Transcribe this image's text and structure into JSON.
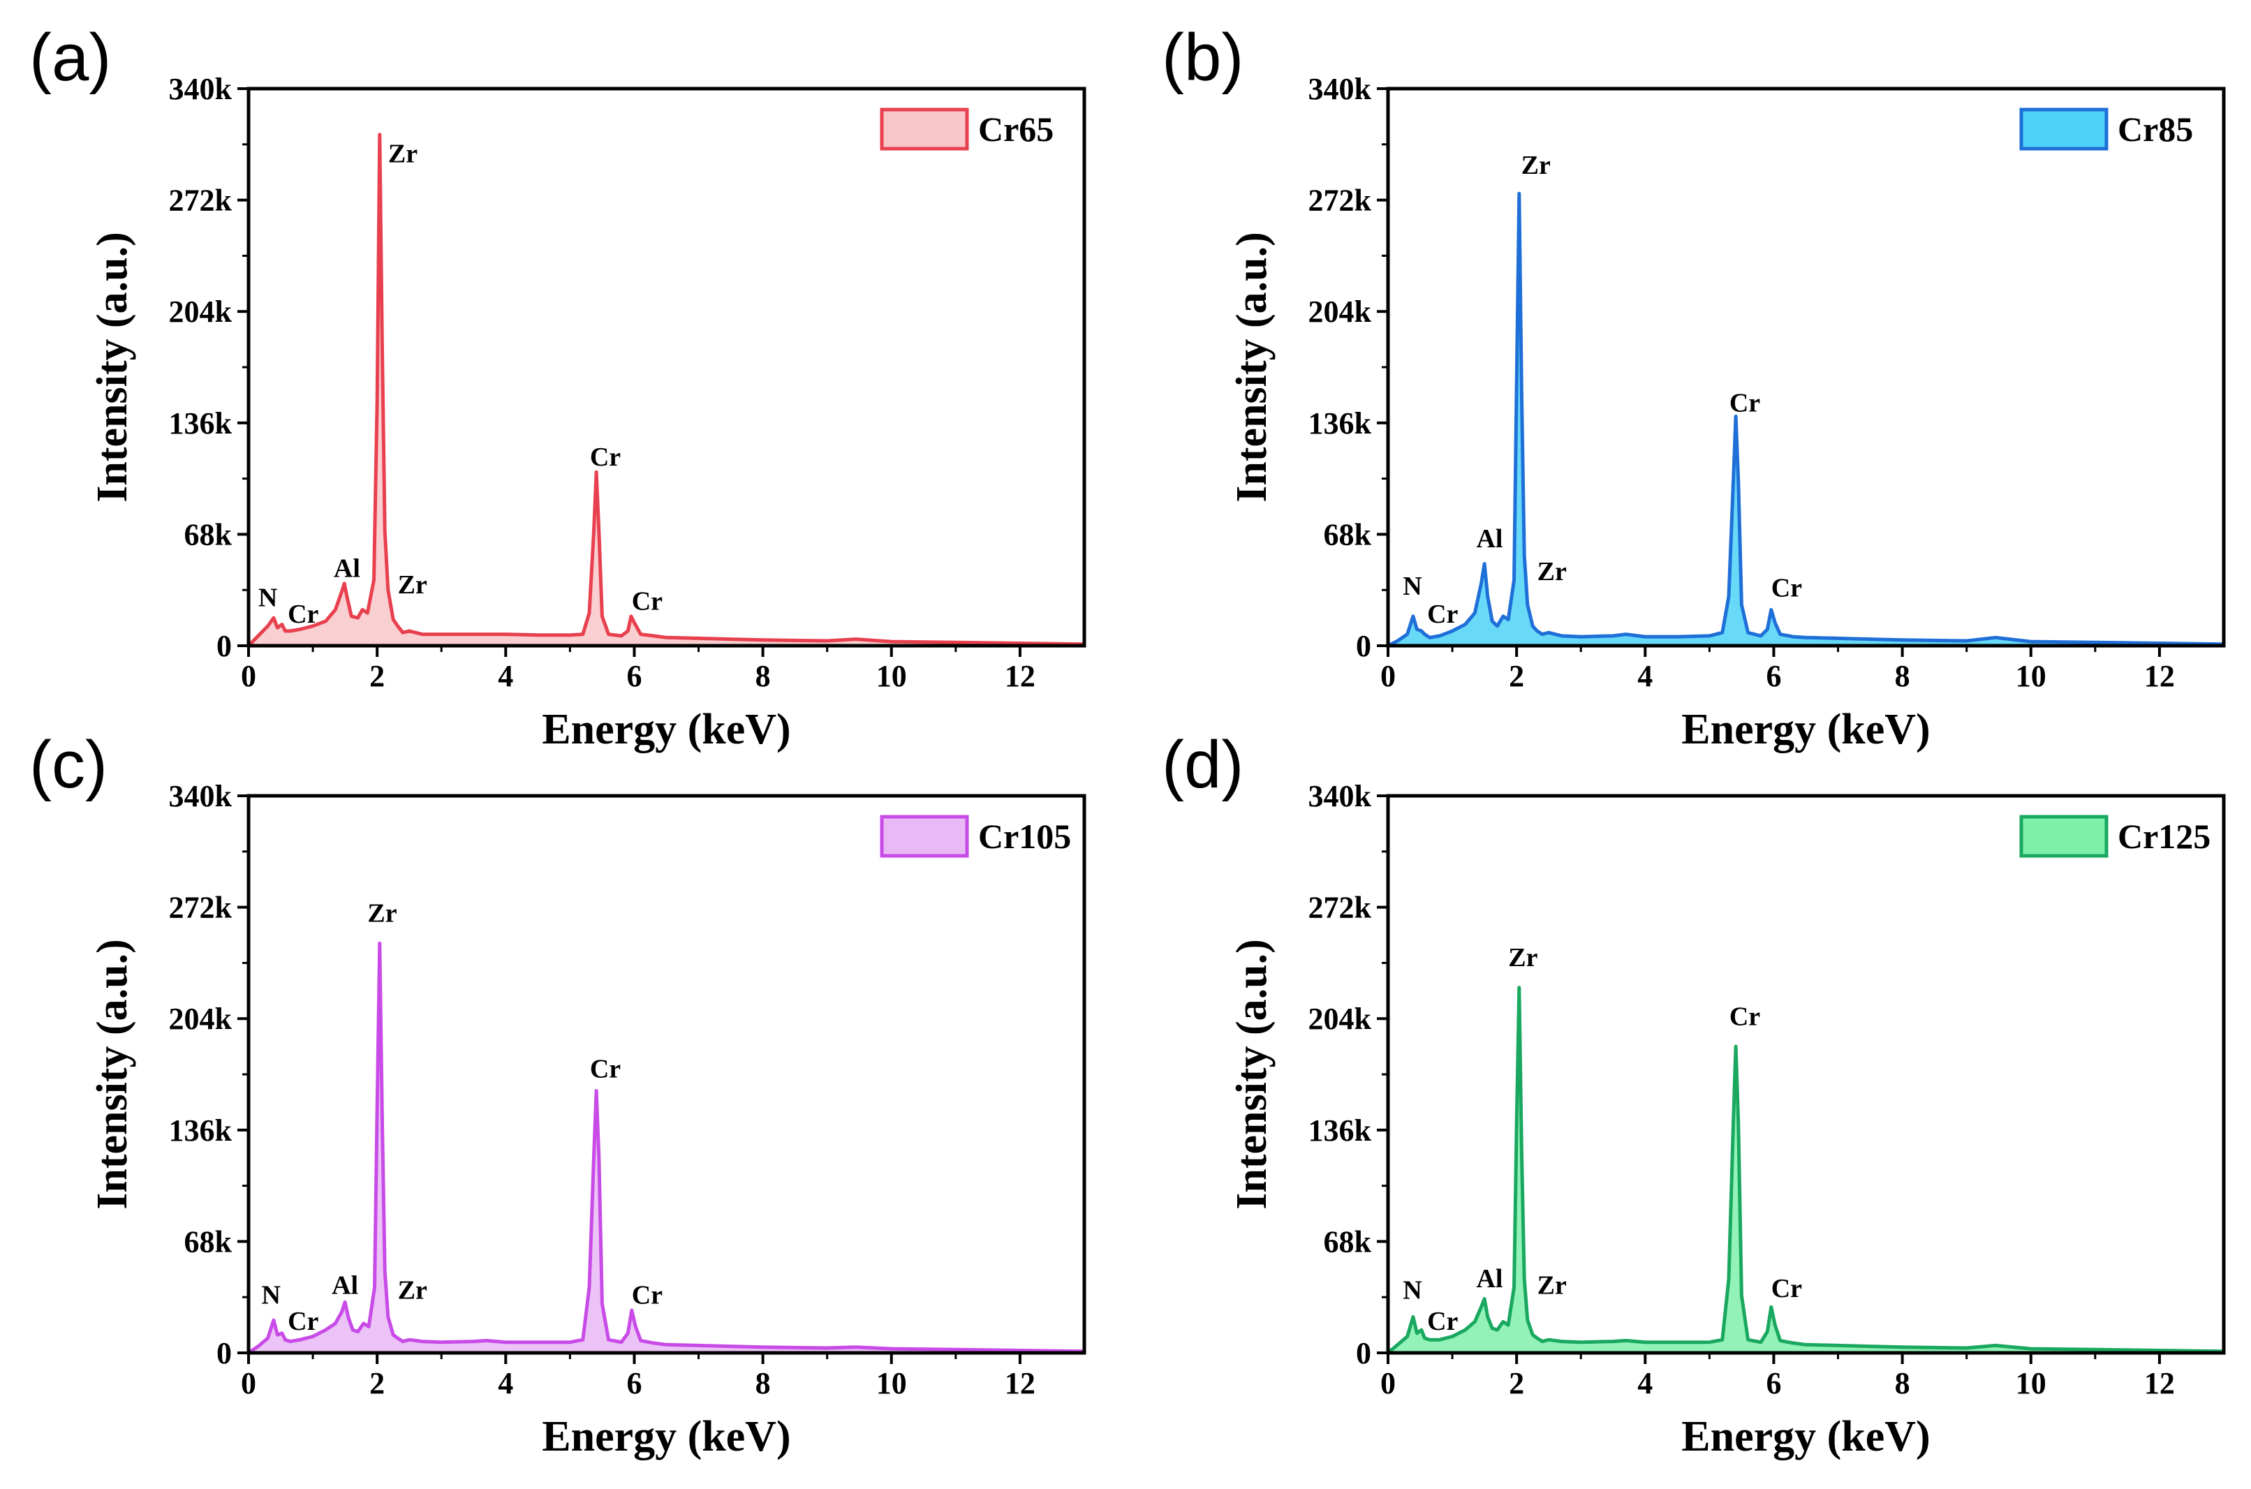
{
  "chart_data": [
    {
      "type": "area",
      "panel_label": "(a)",
      "xlabel": "Energy (keV)",
      "ylabel": "Intensity (a.u.)",
      "xlim": [
        0,
        13
      ],
      "ylim": [
        0,
        340000
      ],
      "x_ticks": [
        "0",
        "2",
        "4",
        "6",
        "8",
        "10",
        "12"
      ],
      "y_ticks": [
        "0",
        "68k",
        "136k",
        "204k",
        "272k",
        "340k"
      ],
      "legend": {
        "name": "Cr65",
        "position": "top-right"
      },
      "colors": {
        "line": "#e8404e",
        "fill": "#f9c7c9"
      },
      "series": [
        {
          "name": "Cr65",
          "x": [
            0,
            0.15,
            0.3,
            0.39,
            0.45,
            0.52,
            0.57,
            0.65,
            0.8,
            1.0,
            1.2,
            1.35,
            1.45,
            1.49,
            1.53,
            1.6,
            1.7,
            1.77,
            1.85,
            1.95,
            2.0,
            2.04,
            2.08,
            2.12,
            2.17,
            2.25,
            2.32,
            2.4,
            2.5,
            2.7,
            3.0,
            3.5,
            4.0,
            4.5,
            5.0,
            5.2,
            5.3,
            5.37,
            5.41,
            5.45,
            5.5,
            5.6,
            5.8,
            5.9,
            5.95,
            6.0,
            6.1,
            6.3,
            6.5,
            7.0,
            7.5,
            8.0,
            9.0,
            9.45,
            10.0,
            11.0,
            12.0,
            13.0
          ],
          "y": [
            0,
            6000,
            12000,
            17000,
            11000,
            13000,
            9000,
            9000,
            10000,
            12000,
            15000,
            22000,
            33000,
            38000,
            30000,
            18000,
            17000,
            22000,
            20000,
            40000,
            150000,
            312000,
            180000,
            70000,
            34000,
            16000,
            12000,
            8000,
            9000,
            7000,
            7000,
            7000,
            7000,
            6500,
            6500,
            7000,
            20000,
            70000,
            106000,
            70000,
            18000,
            7000,
            6000,
            9000,
            18000,
            14000,
            7000,
            6000,
            5000,
            4500,
            4000,
            3500,
            3000,
            4000,
            2500,
            2000,
            1500,
            1000
          ]
        }
      ],
      "annotations": [
        {
          "text": "N",
          "x": 0.3,
          "y": 24000
        },
        {
          "text": "Cr",
          "x": 0.85,
          "y": 14000
        },
        {
          "text": "Al",
          "x": 1.53,
          "y": 42000
        },
        {
          "text": "Zr",
          "x": 2.4,
          "y": 295000
        },
        {
          "text": "Zr",
          "x": 2.55,
          "y": 32000
        },
        {
          "text": "Cr",
          "x": 5.55,
          "y": 110000
        },
        {
          "text": "Cr",
          "x": 6.2,
          "y": 22000
        }
      ]
    },
    {
      "type": "area",
      "panel_label": "(b)",
      "xlabel": "Energy (keV)",
      "ylabel": "Intensity (a.u.)",
      "xlim": [
        0,
        13
      ],
      "ylim": [
        0,
        340000
      ],
      "x_ticks": [
        "0",
        "2",
        "4",
        "6",
        "8",
        "10",
        "12"
      ],
      "y_ticks": [
        "0",
        "68k",
        "136k",
        "204k",
        "272k",
        "340k"
      ],
      "legend": {
        "name": "Cr85",
        "position": "top-right"
      },
      "colors": {
        "line": "#1f6fd8",
        "fill": "#4dd3f7"
      },
      "series": [
        {
          "name": "Cr85",
          "x": [
            0,
            0.15,
            0.3,
            0.39,
            0.45,
            0.52,
            0.57,
            0.65,
            0.8,
            1.0,
            1.2,
            1.35,
            1.45,
            1.5,
            1.55,
            1.62,
            1.7,
            1.79,
            1.87,
            1.96,
            2.0,
            2.04,
            2.08,
            2.12,
            2.17,
            2.25,
            2.32,
            2.4,
            2.5,
            2.7,
            3.0,
            3.5,
            3.7,
            4.0,
            4.5,
            5.0,
            5.2,
            5.3,
            5.37,
            5.41,
            5.45,
            5.5,
            5.6,
            5.8,
            5.9,
            5.96,
            6.02,
            6.1,
            6.3,
            6.5,
            7.0,
            7.5,
            8.0,
            9.0,
            9.45,
            10.0,
            11.0,
            12.0,
            13.0
          ],
          "y": [
            0,
            3000,
            7000,
            18000,
            10000,
            9000,
            7000,
            5000,
            6000,
            9000,
            13000,
            20000,
            38000,
            50000,
            30000,
            15000,
            12000,
            18000,
            16000,
            40000,
            160000,
            276000,
            150000,
            55000,
            25000,
            12000,
            9000,
            7000,
            8000,
            6000,
            5500,
            6000,
            7000,
            5500,
            5500,
            6000,
            8000,
            30000,
            100000,
            140000,
            100000,
            25000,
            8000,
            6000,
            10000,
            22000,
            14000,
            7000,
            5500,
            5000,
            4500,
            4000,
            3500,
            3000,
            5000,
            2500,
            2000,
            1500,
            1000
          ]
        }
      ],
      "annotations": [
        {
          "text": "N",
          "x": 0.38,
          "y": 31000
        },
        {
          "text": "Cr",
          "x": 0.85,
          "y": 14000
        },
        {
          "text": "Al",
          "x": 1.58,
          "y": 60000
        },
        {
          "text": "Zr",
          "x": 2.3,
          "y": 288000
        },
        {
          "text": "Zr",
          "x": 2.55,
          "y": 40000
        },
        {
          "text": "Cr",
          "x": 5.55,
          "y": 143000
        },
        {
          "text": "Cr",
          "x": 6.2,
          "y": 30000
        }
      ]
    },
    {
      "type": "area",
      "panel_label": "(c)",
      "xlabel": "Energy (keV)",
      "ylabel": "Intensity (a.u.)",
      "xlim": [
        0,
        13
      ],
      "ylim": [
        0,
        340000
      ],
      "x_ticks": [
        "0",
        "2",
        "4",
        "6",
        "8",
        "10",
        "12"
      ],
      "y_ticks": [
        "0",
        "68k",
        "136k",
        "204k",
        "272k",
        "340k"
      ],
      "legend": {
        "name": "Cr105",
        "position": "top-right"
      },
      "colors": {
        "line": "#c84be8",
        "fill": "#e8b9f5"
      },
      "series": [
        {
          "name": "Cr105",
          "x": [
            0,
            0.15,
            0.3,
            0.39,
            0.45,
            0.52,
            0.57,
            0.65,
            0.8,
            1.0,
            1.2,
            1.35,
            1.45,
            1.5,
            1.55,
            1.62,
            1.7,
            1.79,
            1.87,
            1.96,
            2.0,
            2.04,
            2.08,
            2.12,
            2.17,
            2.25,
            2.32,
            2.4,
            2.5,
            2.7,
            3.0,
            3.5,
            3.7,
            4.0,
            4.5,
            5.0,
            5.2,
            5.3,
            5.37,
            5.41,
            5.45,
            5.5,
            5.6,
            5.8,
            5.9,
            5.96,
            6.02,
            6.1,
            6.3,
            6.5,
            7.0,
            7.5,
            8.0,
            9.0,
            9.45,
            10.0,
            11.0,
            12.0,
            13.0
          ],
          "y": [
            0,
            4000,
            9000,
            20000,
            11000,
            12000,
            8000,
            7000,
            8000,
            10000,
            14000,
            18000,
            25000,
            31000,
            22000,
            14000,
            13000,
            18000,
            16000,
            40000,
            150000,
            250000,
            140000,
            50000,
            22000,
            11000,
            9000,
            7000,
            8000,
            7000,
            6500,
            7000,
            7500,
            6500,
            6500,
            6500,
            8000,
            40000,
            120000,
            160000,
            120000,
            30000,
            8000,
            6500,
            12000,
            26000,
            16000,
            7500,
            6000,
            5000,
            4500,
            4000,
            3500,
            3000,
            3500,
            2500,
            2000,
            1500,
            1000
          ]
        }
      ],
      "annotations": [
        {
          "text": "N",
          "x": 0.35,
          "y": 30000
        },
        {
          "text": "Cr",
          "x": 0.85,
          "y": 14000
        },
        {
          "text": "Al",
          "x": 1.5,
          "y": 36000
        },
        {
          "text": "Zr",
          "x": 2.08,
          "y": 263000
        },
        {
          "text": "Zr",
          "x": 2.55,
          "y": 33000
        },
        {
          "text": "Cr",
          "x": 5.55,
          "y": 168000
        },
        {
          "text": "Cr",
          "x": 6.2,
          "y": 30000
        }
      ]
    },
    {
      "type": "area",
      "panel_label": "(d)",
      "xlabel": "Energy (keV)",
      "ylabel": "Intensity (a.u.)",
      "xlim": [
        0,
        13
      ],
      "ylim": [
        0,
        340000
      ],
      "x_ticks": [
        "0",
        "2",
        "4",
        "6",
        "8",
        "10",
        "12"
      ],
      "y_ticks": [
        "0",
        "68k",
        "136k",
        "204k",
        "272k",
        "340k"
      ],
      "legend": {
        "name": "Cr125",
        "position": "top-right"
      },
      "colors": {
        "line": "#1aa860",
        "fill": "#7ff0aa"
      },
      "series": [
        {
          "name": "Cr125",
          "x": [
            0,
            0.15,
            0.3,
            0.39,
            0.45,
            0.52,
            0.57,
            0.65,
            0.8,
            1.0,
            1.2,
            1.35,
            1.45,
            1.5,
            1.55,
            1.62,
            1.7,
            1.79,
            1.87,
            1.96,
            2.0,
            2.04,
            2.08,
            2.12,
            2.17,
            2.25,
            2.32,
            2.4,
            2.5,
            2.7,
            3.0,
            3.5,
            3.7,
            4.0,
            4.5,
            5.0,
            5.2,
            5.3,
            5.37,
            5.41,
            5.45,
            5.5,
            5.6,
            5.8,
            5.9,
            5.96,
            6.02,
            6.1,
            6.3,
            6.5,
            7.0,
            7.5,
            8.0,
            9.0,
            9.45,
            10.0,
            11.0,
            12.0,
            13.0
          ],
          "y": [
            0,
            5000,
            10000,
            22000,
            12000,
            14000,
            9000,
            8000,
            8000,
            10000,
            14000,
            19000,
            28000,
            33000,
            22000,
            15000,
            14000,
            19000,
            17000,
            40000,
            140000,
            223000,
            120000,
            45000,
            20000,
            11000,
            9000,
            7000,
            8000,
            7000,
            6500,
            7000,
            7500,
            6500,
            6500,
            6500,
            8000,
            45000,
            140000,
            187000,
            140000,
            35000,
            8000,
            6500,
            13000,
            28000,
            17000,
            7500,
            6000,
            5000,
            4500,
            4000,
            3500,
            3000,
            4500,
            2500,
            2000,
            1500,
            1000
          ]
        }
      ],
      "annotations": [
        {
          "text": "N",
          "x": 0.38,
          "y": 33000
        },
        {
          "text": "Cr",
          "x": 0.85,
          "y": 14000
        },
        {
          "text": "Al",
          "x": 1.58,
          "y": 40000
        },
        {
          "text": "Zr",
          "x": 2.1,
          "y": 236000
        },
        {
          "text": "Zr",
          "x": 2.55,
          "y": 36000
        },
        {
          "text": "Cr",
          "x": 5.55,
          "y": 200000
        },
        {
          "text": "Cr",
          "x": 6.2,
          "y": 34000
        }
      ]
    }
  ]
}
